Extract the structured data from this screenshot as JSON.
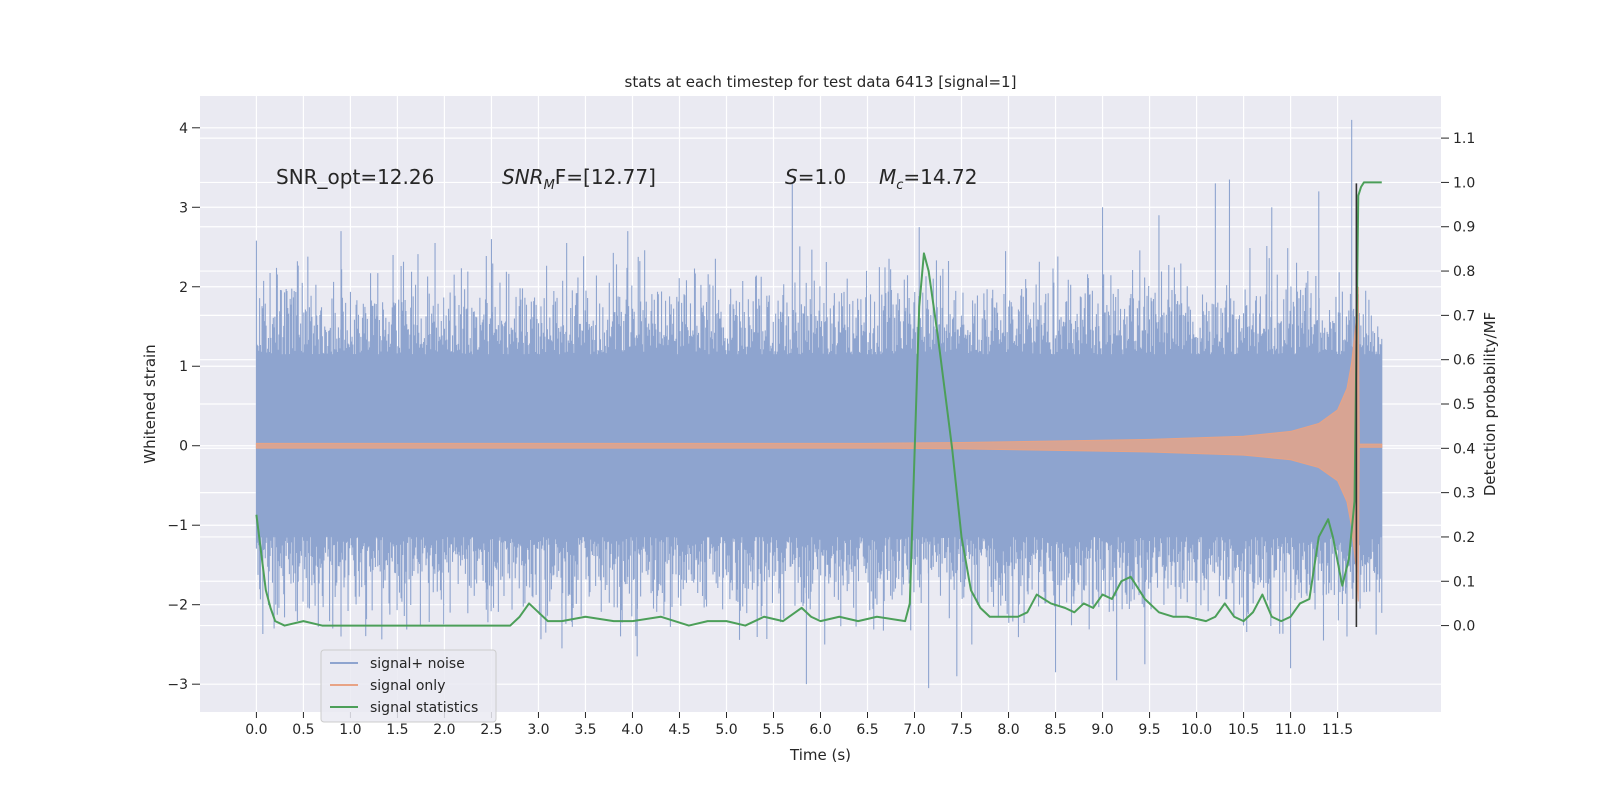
{
  "chart_data": {
    "type": "line",
    "title": "stats at each timestep for test data 6413 [signal=1]",
    "xlabel": "Time (s)",
    "ylabel_left": "Whitened strain",
    "ylabel_right": "Detection probability/MF",
    "xlim": [
      -0.6,
      12.6
    ],
    "ylim_left": [
      -3.35,
      4.4
    ],
    "ylim_right": [
      -0.195,
      1.195
    ],
    "xticks": [
      0.0,
      0.5,
      1.0,
      1.5,
      2.0,
      2.5,
      3.0,
      3.5,
      4.0,
      4.5,
      5.0,
      5.5,
      6.0,
      6.5,
      7.0,
      7.5,
      8.0,
      8.5,
      9.0,
      9.5,
      10.0,
      10.5,
      11.0,
      11.5
    ],
    "xtick_labels": [
      "0.0",
      "0.5",
      "1.0",
      "1.5",
      "2.0",
      "2.5",
      "3.0",
      "3.5",
      "4.0",
      "4.5",
      "5.0",
      "5.5",
      "6.0",
      "6.5",
      "7.0",
      "7.5",
      "8.0",
      "8.5",
      "9.0",
      "9.5",
      "10.0",
      "10.5",
      "11.0",
      "11.5"
    ],
    "yticks_left": [
      -3,
      -2,
      -1,
      0,
      1,
      2,
      3,
      4
    ],
    "ytick_labels_left": [
      "−3",
      "−2",
      "−1",
      "0",
      "1",
      "2",
      "3",
      "4"
    ],
    "yticks_right": [
      0.0,
      0.1,
      0.2,
      0.3,
      0.4,
      0.5,
      0.6,
      0.7,
      0.8,
      0.9,
      1.0,
      1.1
    ],
    "ytick_labels_right": [
      "0.0",
      "0.1",
      "0.2",
      "0.3",
      "0.4",
      "0.5",
      "0.6",
      "0.7",
      "0.8",
      "0.9",
      "1.0",
      "1.1"
    ],
    "annotations": [
      {
        "id": "snr-opt",
        "text": "SNR_opt=12.26",
        "x": 0.2,
        "y": 3.35
      },
      {
        "id": "snr-mf",
        "prefix": "SNR",
        "sub": "M",
        "suffix": "F=[12.77]",
        "x": 2.6,
        "y": 3.35
      },
      {
        "id": "s-value",
        "prefix": "S",
        "suffix": "=1.0",
        "x": 5.6,
        "y": 3.35
      },
      {
        "id": "mc-value",
        "prefix": "M",
        "sub": "c",
        "suffix": "=14.72",
        "x": 6.6,
        "y": 3.35
      }
    ],
    "legend": {
      "location": "lower-left",
      "entries": [
        {
          "label": "signal+ noise",
          "color": "#8ea4cf"
        },
        {
          "label": "signal only",
          "color": "#e8a385"
        },
        {
          "label": "signal statistics",
          "color": "#4c9f59"
        }
      ]
    },
    "series": [
      {
        "name": "signal+ noise",
        "axis": "left",
        "style": "dense-noise",
        "color": "#8ea4cf",
        "x_range": [
          0.0,
          11.97
        ],
        "envelope_typical": 1.6,
        "peaks": [
          {
            "x": 0.0,
            "y": 2.58
          },
          {
            "x": 0.9,
            "y": 2.7
          },
          {
            "x": 1.9,
            "y": 2.55
          },
          {
            "x": 2.5,
            "y": 2.6
          },
          {
            "x": 3.3,
            "y": 2.55
          },
          {
            "x": 3.95,
            "y": 2.7
          },
          {
            "x": 5.7,
            "y": 3.3
          },
          {
            "x": 7.05,
            "y": 2.75
          },
          {
            "x": 9.0,
            "y": 3.0
          },
          {
            "x": 9.6,
            "y": 2.9
          },
          {
            "x": 10.2,
            "y": 3.3
          },
          {
            "x": 10.35,
            "y": 3.35
          },
          {
            "x": 10.8,
            "y": 3.0
          },
          {
            "x": 11.3,
            "y": 3.2
          },
          {
            "x": 11.65,
            "y": 4.1
          }
        ],
        "troughs": [
          {
            "x": 0.9,
            "y": -2.4
          },
          {
            "x": 3.25,
            "y": -2.55
          },
          {
            "x": 4.05,
            "y": -2.65
          },
          {
            "x": 5.85,
            "y": -3.0
          },
          {
            "x": 7.15,
            "y": -3.05
          },
          {
            "x": 7.45,
            "y": -2.9
          },
          {
            "x": 8.5,
            "y": -2.85
          },
          {
            "x": 9.15,
            "y": -2.95
          },
          {
            "x": 9.45,
            "y": -2.75
          },
          {
            "x": 11.0,
            "y": -2.8
          },
          {
            "x": 11.35,
            "y": -2.45
          },
          {
            "x": 11.6,
            "y": -2.4
          }
        ]
      },
      {
        "name": "signal only",
        "axis": "left",
        "style": "chirp-envelope",
        "color": "#e8a385",
        "x": [
          0.0,
          6.5,
          7.5,
          8.5,
          9.5,
          10.5,
          11.0,
          11.3,
          11.5,
          11.6,
          11.65,
          11.7,
          11.72,
          11.73,
          11.97
        ],
        "amplitude": [
          0.03,
          0.03,
          0.04,
          0.06,
          0.08,
          0.12,
          0.18,
          0.28,
          0.45,
          0.72,
          1.05,
          1.6,
          2.0,
          0.02,
          0.02
        ]
      },
      {
        "name": "signal statistics",
        "axis": "right",
        "color": "#4c9f59",
        "x": [
          0.0,
          0.1,
          0.15,
          0.2,
          0.3,
          0.5,
          0.7,
          1.0,
          1.5,
          2.0,
          2.5,
          2.7,
          2.8,
          2.9,
          3.0,
          3.1,
          3.25,
          3.5,
          3.8,
          4.0,
          4.3,
          4.6,
          4.8,
          5.0,
          5.2,
          5.4,
          5.6,
          5.8,
          5.9,
          6.0,
          6.2,
          6.4,
          6.6,
          6.9,
          6.95,
          7.05,
          7.1,
          7.15,
          7.25,
          7.4,
          7.5,
          7.6,
          7.7,
          7.8,
          7.9,
          8.1,
          8.2,
          8.3,
          8.45,
          8.6,
          8.7,
          8.8,
          8.9,
          9.0,
          9.1,
          9.2,
          9.3,
          9.45,
          9.6,
          9.75,
          9.9,
          10.1,
          10.2,
          10.3,
          10.4,
          10.5,
          10.6,
          10.7,
          10.8,
          10.9,
          11.0,
          11.1,
          11.2,
          11.3,
          11.4,
          11.45,
          11.55,
          11.62,
          11.68,
          11.72,
          11.75,
          11.78,
          11.82,
          11.9,
          11.97
        ],
        "y": [
          0.25,
          0.08,
          0.04,
          0.01,
          0.0,
          0.01,
          0.0,
          0.0,
          0.0,
          0.0,
          0.0,
          0.0,
          0.02,
          0.05,
          0.03,
          0.01,
          0.01,
          0.02,
          0.01,
          0.01,
          0.02,
          0.0,
          0.01,
          0.01,
          0.0,
          0.02,
          0.01,
          0.04,
          0.02,
          0.01,
          0.02,
          0.01,
          0.02,
          0.01,
          0.05,
          0.72,
          0.84,
          0.8,
          0.65,
          0.4,
          0.2,
          0.08,
          0.04,
          0.02,
          0.02,
          0.02,
          0.03,
          0.07,
          0.05,
          0.04,
          0.03,
          0.05,
          0.04,
          0.07,
          0.06,
          0.1,
          0.11,
          0.06,
          0.03,
          0.02,
          0.02,
          0.01,
          0.02,
          0.05,
          0.02,
          0.01,
          0.03,
          0.07,
          0.02,
          0.01,
          0.02,
          0.05,
          0.06,
          0.2,
          0.24,
          0.2,
          0.09,
          0.15,
          0.28,
          0.97,
          0.99,
          1.0,
          1.0,
          1.0,
          1.0
        ]
      }
    ],
    "markers": [
      {
        "name": "merger-line",
        "x": 11.7,
        "y_range": [
          -2.28,
          3.3
        ],
        "color": "#333333"
      }
    ],
    "grid": true
  }
}
